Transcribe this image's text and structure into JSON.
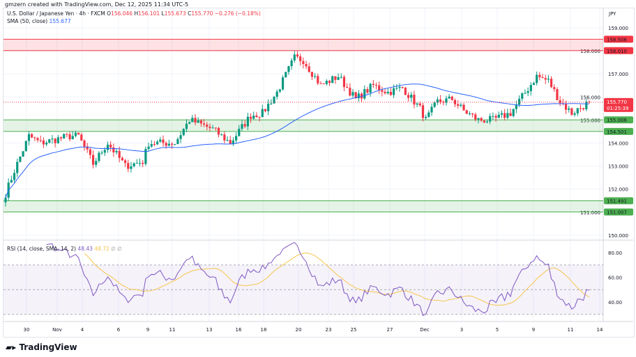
{
  "credit": "gmzern created with TradingView.com, Dec 12, 2025 11:34 UTC-5",
  "legend": {
    "symbol": "U.S. Dollar / Japanese Yen · 4h · FXCM",
    "o_label": "O",
    "o": "156.046",
    "h_label": "H",
    "h": "156.101",
    "l_label": "L",
    "l": "155.673",
    "c_label": "C",
    "c": "155.770",
    "change": "−0.276 (−0.18%)",
    "sma_label": "SMA (50, close)",
    "sma_value": "155.677"
  },
  "rsi_legend": {
    "label": "RSI (14, close, SMA, 14, 2)",
    "rsi": "48.43",
    "sma": "48.72",
    "extra": "∅ ∅"
  },
  "currency": "JPY",
  "logo": "TradingView",
  "colors": {
    "up": "#089981",
    "down": "#f23645",
    "sma": "#2962ff",
    "rsi": "#7e57c2",
    "rsi_sma": "#f7c64b",
    "resistance": "#f23645",
    "support": "#4caf50"
  },
  "chart_data": {
    "type": "candlestick",
    "timeframe": "4h",
    "ylim": [
      150,
      159.3
    ],
    "y_ticks": [
      "159.000",
      "158.000",
      "157.000",
      "156.000",
      "155.000",
      "154.000",
      "153.000",
      "152.000",
      "151.000",
      "150.000"
    ],
    "x_ticks": [
      "30",
      "Nov",
      "4",
      "6",
      "9",
      "11",
      "13",
      "16",
      "18",
      "20",
      "23",
      "25",
      "27",
      "Dec",
      "3",
      "5",
      "9",
      "11",
      "14"
    ],
    "close_keyframes": [
      [
        0,
        151.8
      ],
      [
        3,
        152.8
      ],
      [
        8,
        154.3
      ],
      [
        12,
        154.0
      ],
      [
        22,
        154.3
      ],
      [
        25,
        154.3
      ],
      [
        30,
        153.1
      ],
      [
        35,
        154.0
      ],
      [
        41,
        153.0
      ],
      [
        47,
        153.2
      ],
      [
        49,
        154.0
      ],
      [
        58,
        154.0
      ],
      [
        63,
        155.0
      ],
      [
        71,
        154.6
      ],
      [
        77,
        154.0
      ],
      [
        84,
        155.2
      ],
      [
        88,
        155.3
      ],
      [
        93,
        156.2
      ],
      [
        97,
        157.2
      ],
      [
        99,
        157.7
      ],
      [
        102,
        157.6
      ],
      [
        108,
        156.5
      ],
      [
        114,
        156.9
      ],
      [
        120,
        155.9
      ],
      [
        126,
        156.5
      ],
      [
        131,
        156.2
      ],
      [
        136,
        156.4
      ],
      [
        142,
        155.5
      ],
      [
        144,
        155.0
      ],
      [
        148,
        155.8
      ],
      [
        153,
        155.9
      ],
      [
        157,
        155.4
      ],
      [
        162,
        155.0
      ],
      [
        167,
        155.0
      ],
      [
        173,
        155.3
      ],
      [
        177,
        156.0
      ],
      [
        182,
        156.9
      ],
      [
        186,
        156.7
      ],
      [
        190,
        155.8
      ],
      [
        194,
        155.3
      ],
      [
        200,
        155.77
      ]
    ],
    "zones": [
      {
        "type": "resistance",
        "top": "158.506",
        "bottom": "158.010"
      },
      {
        "type": "support",
        "top": "155.006",
        "bottom": "154.501"
      },
      {
        "type": "support",
        "top": "151.491",
        "bottom": "151.007"
      }
    ],
    "last_price": "155.770",
    "countdown": "01:25:39",
    "rsi": {
      "ylim": [
        20,
        90
      ],
      "y_ticks": [
        "80.00",
        "60.00",
        "40.00"
      ],
      "bands": [
        70,
        30
      ]
    }
  }
}
